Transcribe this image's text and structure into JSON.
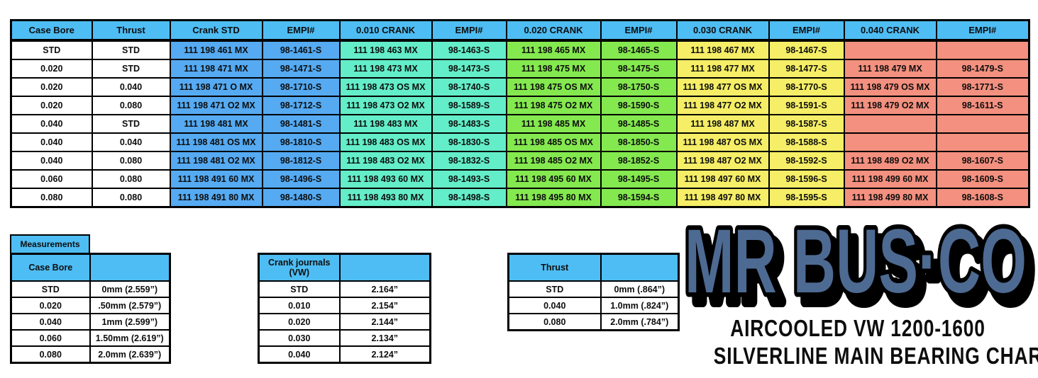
{
  "main_table": {
    "headers": [
      "Case Bore",
      "Thrust",
      "Crank STD",
      "EMPI#",
      "0.010 CRANK",
      "EMPI#",
      "0.020 CRANK",
      "EMPI#",
      "0.030 CRANK",
      "EMPI#",
      "0.040 CRANK",
      "EMPI#"
    ],
    "rows": [
      [
        "STD",
        "STD",
        "111 198 461 MX",
        "98-1461-S",
        "111 198 463 MX",
        "98-1463-S",
        "111 198 465 MX",
        "98-1465-S",
        "111 198 467 MX",
        "98-1467-S",
        "",
        ""
      ],
      [
        "0.020",
        "STD",
        "111 198 471 MX",
        "98-1471-S",
        "111 198 473 MX",
        "98-1473-S",
        "111 198 475 MX",
        "98-1475-S",
        "111 198 477 MX",
        "98-1477-S",
        "111 198 479 MX",
        "98-1479-S"
      ],
      [
        "0.020",
        "0.040",
        "111 198 471 O MX",
        "98-1710-S",
        "111 198 473 OS MX",
        "98-1740-S",
        "111 198 475 OS MX",
        "98-1750-S",
        "111 198 477 OS MX",
        "98-1770-S",
        "111 198 479 OS MX",
        "98-1771-S"
      ],
      [
        "0.020",
        "0.080",
        "111 198 471 O2 MX",
        "98-1712-S",
        "111 198 473 O2 MX",
        "98-1589-S",
        "111 198 475 O2 MX",
        "98-1590-S",
        "111 198 477 O2 MX",
        "98-1591-S",
        "111 198 479 O2 MX",
        "98-1611-S"
      ],
      [
        "0.040",
        "STD",
        "111 198 481 MX",
        "98-1481-S",
        "111 198 483 MX",
        "98-1483-S",
        "111 198 485 MX",
        "98-1485-S",
        "111 198 487 MX",
        "98-1587-S",
        "",
        ""
      ],
      [
        "0.040",
        "0.040",
        "111 198 481 OS MX",
        "98-1810-S",
        "111 198 483 OS MX",
        "98-1830-S",
        "111 198 485 OS MX",
        "98-1850-S",
        "111 198 487 OS MX",
        "98-1588-S",
        "",
        ""
      ],
      [
        "0.040",
        "0.080",
        "111 198 481 O2 MX",
        "98-1812-S",
        "111 198 483 O2 MX",
        "98-1832-S",
        "111 198 485 O2 MX",
        "98-1852-S",
        "111 198 487 O2 MX",
        "98-1592-S",
        "111 198 489 O2 MX",
        "98-1607-S"
      ],
      [
        "0.060",
        "0.080",
        "111 198 491 60 MX",
        "98-1496-S",
        "111 198 493 60 MX",
        "98-1493-S",
        "111 198 495 60 MX",
        "98-1495-S",
        "111 198 497 60 MX",
        "98-1596-S",
        "111 198 499 60 MX",
        "98-1609-S"
      ],
      [
        "0.080",
        "0.080",
        "111 198 491 80 MX",
        "98-1480-S",
        "111 198 493 80 MX",
        "98-1498-S",
        "111 198 495 80 MX",
        "98-1594-S",
        "111 198 497 80 MX",
        "98-1595-S",
        "111 198 499 80 MX",
        "98-1608-S"
      ]
    ]
  },
  "measurements_label": "Measurements",
  "case_bore_table": {
    "header": "Case Bore",
    "rows": [
      [
        "STD",
        "0mm (2.559”)"
      ],
      [
        "0.020",
        ".50mm (2.579”)"
      ],
      [
        "0.040",
        "1mm (2.599”)"
      ],
      [
        "0.060",
        "1.50mm (2.619”)"
      ],
      [
        "0.080",
        "2.0mm (2.639”)"
      ]
    ]
  },
  "crank_journals_table": {
    "header": "Crank journals (VW)",
    "rows": [
      [
        "STD",
        "2.164”"
      ],
      [
        "0.010",
        "2.154”"
      ],
      [
        "0.020",
        "2.144”"
      ],
      [
        "0.030",
        "2.134”"
      ],
      [
        "0.040",
        "2.124”"
      ]
    ]
  },
  "thrust_table": {
    "header": "Thrust",
    "rows": [
      [
        "STD",
        "0mm (.864”)"
      ],
      [
        "0.040",
        "1.0mm (.824”)"
      ],
      [
        "0.080",
        "2.0mm (.784”)"
      ]
    ]
  },
  "logo": {
    "brand": "MR BUS·CO",
    "subtitle1": "AIRCOOLED VW 1200-1600",
    "subtitle2": "SILVERLINE MAIN BEARING CHART"
  },
  "colors": {
    "header_blue": "#4ebdf3",
    "body_blue": "#55aaf2",
    "aqua": "#63edc8",
    "green": "#84e84f",
    "yellow": "#f5ee66",
    "salmon": "#f3907f",
    "logo_fill": "#4d6a92"
  }
}
